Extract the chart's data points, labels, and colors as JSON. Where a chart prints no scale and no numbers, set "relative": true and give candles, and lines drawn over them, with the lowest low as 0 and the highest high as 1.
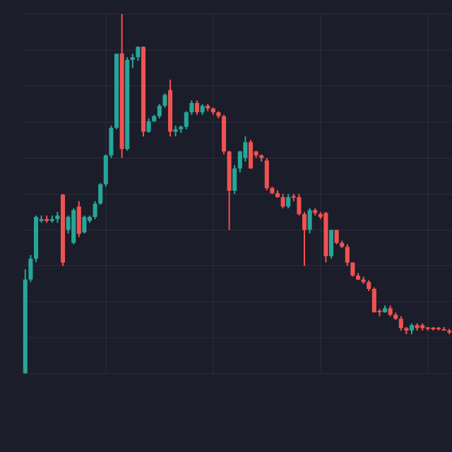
{
  "chart_data": {
    "type": "candlestick",
    "relative": true,
    "grid": true,
    "legend": false,
    "categories": [
      null,
      null,
      null,
      null,
      null,
      null,
      null,
      null,
      null,
      null,
      null,
      null,
      null,
      null,
      null,
      null,
      null,
      null,
      null,
      null,
      null,
      null,
      null,
      null,
      null,
      null,
      null,
      null,
      null,
      null,
      null,
      null,
      null,
      null,
      null,
      null,
      null,
      null,
      null,
      null,
      null,
      null,
      null,
      null,
      null,
      null,
      null,
      null,
      null,
      null,
      null,
      null,
      null,
      null,
      null,
      null,
      null,
      null,
      null,
      null,
      null,
      null,
      null,
      null,
      null,
      null,
      null,
      null,
      null,
      null,
      null,
      null,
      null,
      null,
      null,
      null,
      null,
      null,
      null,
      null
    ],
    "ohlc": [
      [
        0,
        0.29,
        0,
        0.262
      ],
      [
        0.262,
        0.33,
        0.255,
        0.32
      ],
      [
        0.32,
        0.44,
        0.31,
        0.436
      ],
      [
        0.425,
        0.44,
        0.42,
        0.43
      ],
      [
        0.43,
        0.44,
        0.42,
        0.425
      ],
      [
        0.425,
        0.44,
        0.42,
        0.43
      ],
      [
        0.43,
        0.45,
        0.42,
        0.44
      ],
      [
        0.498,
        0.5,
        0.3,
        0.309
      ],
      [
        0.4,
        0.44,
        0.39,
        0.436
      ],
      [
        0.364,
        0.46,
        0.36,
        0.455
      ],
      [
        0.465,
        0.48,
        0.38,
        0.389
      ],
      [
        0.393,
        0.44,
        0.39,
        0.436
      ],
      [
        0.425,
        0.44,
        0.42,
        0.436
      ],
      [
        0.436,
        0.48,
        0.43,
        0.473
      ],
      [
        0.473,
        0.53,
        0.47,
        0.527
      ],
      [
        0.527,
        0.61,
        0.52,
        0.607
      ],
      [
        0.607,
        0.69,
        0.6,
        0.684
      ],
      [
        0.684,
        0.89,
        0.68,
        0.89
      ],
      [
        0.891,
        1,
        0.6,
        0.625
      ],
      [
        0.625,
        0.88,
        0.62,
        0.873
      ],
      [
        0.873,
        0.89,
        0.85,
        0.88
      ],
      [
        0.88,
        0.91,
        0.87,
        0.909
      ],
      [
        0.909,
        0.91,
        0.66,
        0.673
      ],
      [
        0.673,
        0.71,
        0.67,
        0.702
      ],
      [
        0.702,
        0.72,
        0.7,
        0.716
      ],
      [
        0.716,
        0.75,
        0.71,
        0.745
      ],
      [
        0.745,
        0.78,
        0.74,
        0.775
      ],
      [
        0.789,
        0.818,
        0.66,
        0.673
      ],
      [
        0.673,
        0.69,
        0.66,
        0.68
      ],
      [
        0.68,
        0.69,
        0.67,
        0.687
      ],
      [
        0.687,
        0.73,
        0.68,
        0.727
      ],
      [
        0.727,
        0.76,
        0.72,
        0.753
      ],
      [
        0.753,
        0.76,
        0.72,
        0.727
      ],
      [
        0.727,
        0.75,
        0.72,
        0.745
      ],
      [
        0.745,
        0.75,
        0.73,
        0.738
      ],
      [
        0.738,
        0.74,
        0.72,
        0.727
      ],
      [
        0.727,
        0.73,
        0.71,
        0.716
      ],
      [
        0.716,
        0.72,
        0.61,
        0.618
      ],
      [
        0.618,
        0.62,
        0.4,
        0.509
      ],
      [
        0.509,
        0.58,
        0.5,
        0.571
      ],
      [
        0.571,
        0.62,
        0.56,
        0.618
      ],
      [
        0.6,
        0.66,
        0.59,
        0.644
      ],
      [
        0.644,
        0.65,
        0.57,
        0.571
      ],
      [
        0.618,
        0.62,
        0.6,
        0.607
      ],
      [
        0.607,
        0.61,
        0.59,
        0.6
      ],
      [
        0.593,
        0.6,
        0.51,
        0.516
      ],
      [
        0.516,
        0.52,
        0.5,
        0.502
      ],
      [
        0.502,
        0.51,
        0.49,
        0.491
      ],
      [
        0.491,
        0.5,
        0.46,
        0.465
      ],
      [
        0.465,
        0.5,
        0.46,
        0.491
      ],
      [
        0.491,
        0.5,
        0.48,
        0.49
      ],
      [
        0.491,
        0.5,
        0.44,
        0.444
      ],
      [
        0.444,
        0.45,
        0.3,
        0.4
      ],
      [
        0.4,
        0.46,
        0.39,
        0.455
      ],
      [
        0.455,
        0.46,
        0.44,
        0.447
      ],
      [
        0.444,
        0.45,
        0.43,
        0.436
      ],
      [
        0.447,
        0.45,
        0.31,
        0.327
      ],
      [
        0.327,
        0.4,
        0.32,
        0.4
      ],
      [
        0.4,
        0.4,
        0.36,
        0.364
      ],
      [
        0.364,
        0.37,
        0.35,
        0.353
      ],
      [
        0.353,
        0.36,
        0.3,
        0.309
      ],
      [
        0.309,
        0.31,
        0.27,
        0.273
      ],
      [
        0.273,
        0.28,
        0.26,
        0.262
      ],
      [
        0.262,
        0.27,
        0.25,
        0.255
      ],
      [
        0.255,
        0.26,
        0.23,
        0.236
      ],
      [
        0.236,
        0.24,
        0.17,
        0.171
      ],
      [
        0.171,
        0.18,
        0.16,
        0.171
      ],
      [
        0.171,
        0.19,
        0.17,
        0.182
      ],
      [
        0.182,
        0.19,
        0.16,
        0.164
      ],
      [
        0.164,
        0.17,
        0.15,
        0.153
      ],
      [
        0.153,
        0.16,
        0.12,
        0.127
      ],
      [
        0.127,
        0.13,
        0.11,
        0.12
      ],
      [
        0.12,
        0.14,
        0.11,
        0.135
      ],
      [
        0.135,
        0.14,
        0.12,
        0.127
      ],
      [
        0.135,
        0.14,
        0.12,
        0.127
      ],
      [
        0.127,
        0.13,
        0.12,
        0.125
      ],
      [
        0.125,
        0.13,
        0.12,
        0.124
      ],
      [
        0.124,
        0.13,
        0.12,
        0.124
      ],
      [
        0.124,
        0.13,
        0.12,
        0.12
      ],
      [
        0.12,
        0.125,
        0.11,
        0.115
      ]
    ],
    "colors": [
      "#26a69a",
      "#26a69a",
      "#26a69a",
      "#26a69a",
      "#ef5350",
      "#26a69a",
      "#26a69a",
      "#ef5350",
      "#26a69a",
      "#26a69a",
      "#ef5350",
      "#26a69a",
      "#26a69a",
      "#26a69a",
      "#26a69a",
      "#26a69a",
      "#26a69a",
      "#26a69a",
      "#ef5350",
      "#26a69a",
      "#26a69a",
      "#26a69a",
      "#ef5350",
      "#26a69a",
      "#26a69a",
      "#26a69a",
      "#26a69a",
      "#ef5350",
      "#26a69a",
      "#26a69a",
      "#26a69a",
      "#26a69a",
      "#ef5350",
      "#26a69a",
      "#ef5350",
      "#ef5350",
      "#ef5350",
      "#ef5350",
      "#ef5350",
      "#26a69a",
      "#26a69a",
      "#26a69a",
      "#ef5350",
      "#ef5350",
      "#ef5350",
      "#ef5350",
      "#ef5350",
      "#ef5350",
      "#ef5350",
      "#26a69a",
      "#ef5350",
      "#ef5350",
      "#ef5350",
      "#26a69a",
      "#ef5350",
      "#ef5350",
      "#ef5350",
      "#26a69a",
      "#ef5350",
      "#ef5350",
      "#ef5350",
      "#ef5350",
      "#ef5350",
      "#ef5350",
      "#ef5350",
      "#ef5350",
      "#ef5350",
      "#26a69a",
      "#ef5350",
      "#ef5350",
      "#ef5350",
      "#ef5350",
      "#26a69a",
      "#ef5350",
      "#ef5350",
      "#ef5350",
      "#ef5350",
      "#ef5350",
      "#ef5350",
      "#ef5350"
    ]
  }
}
